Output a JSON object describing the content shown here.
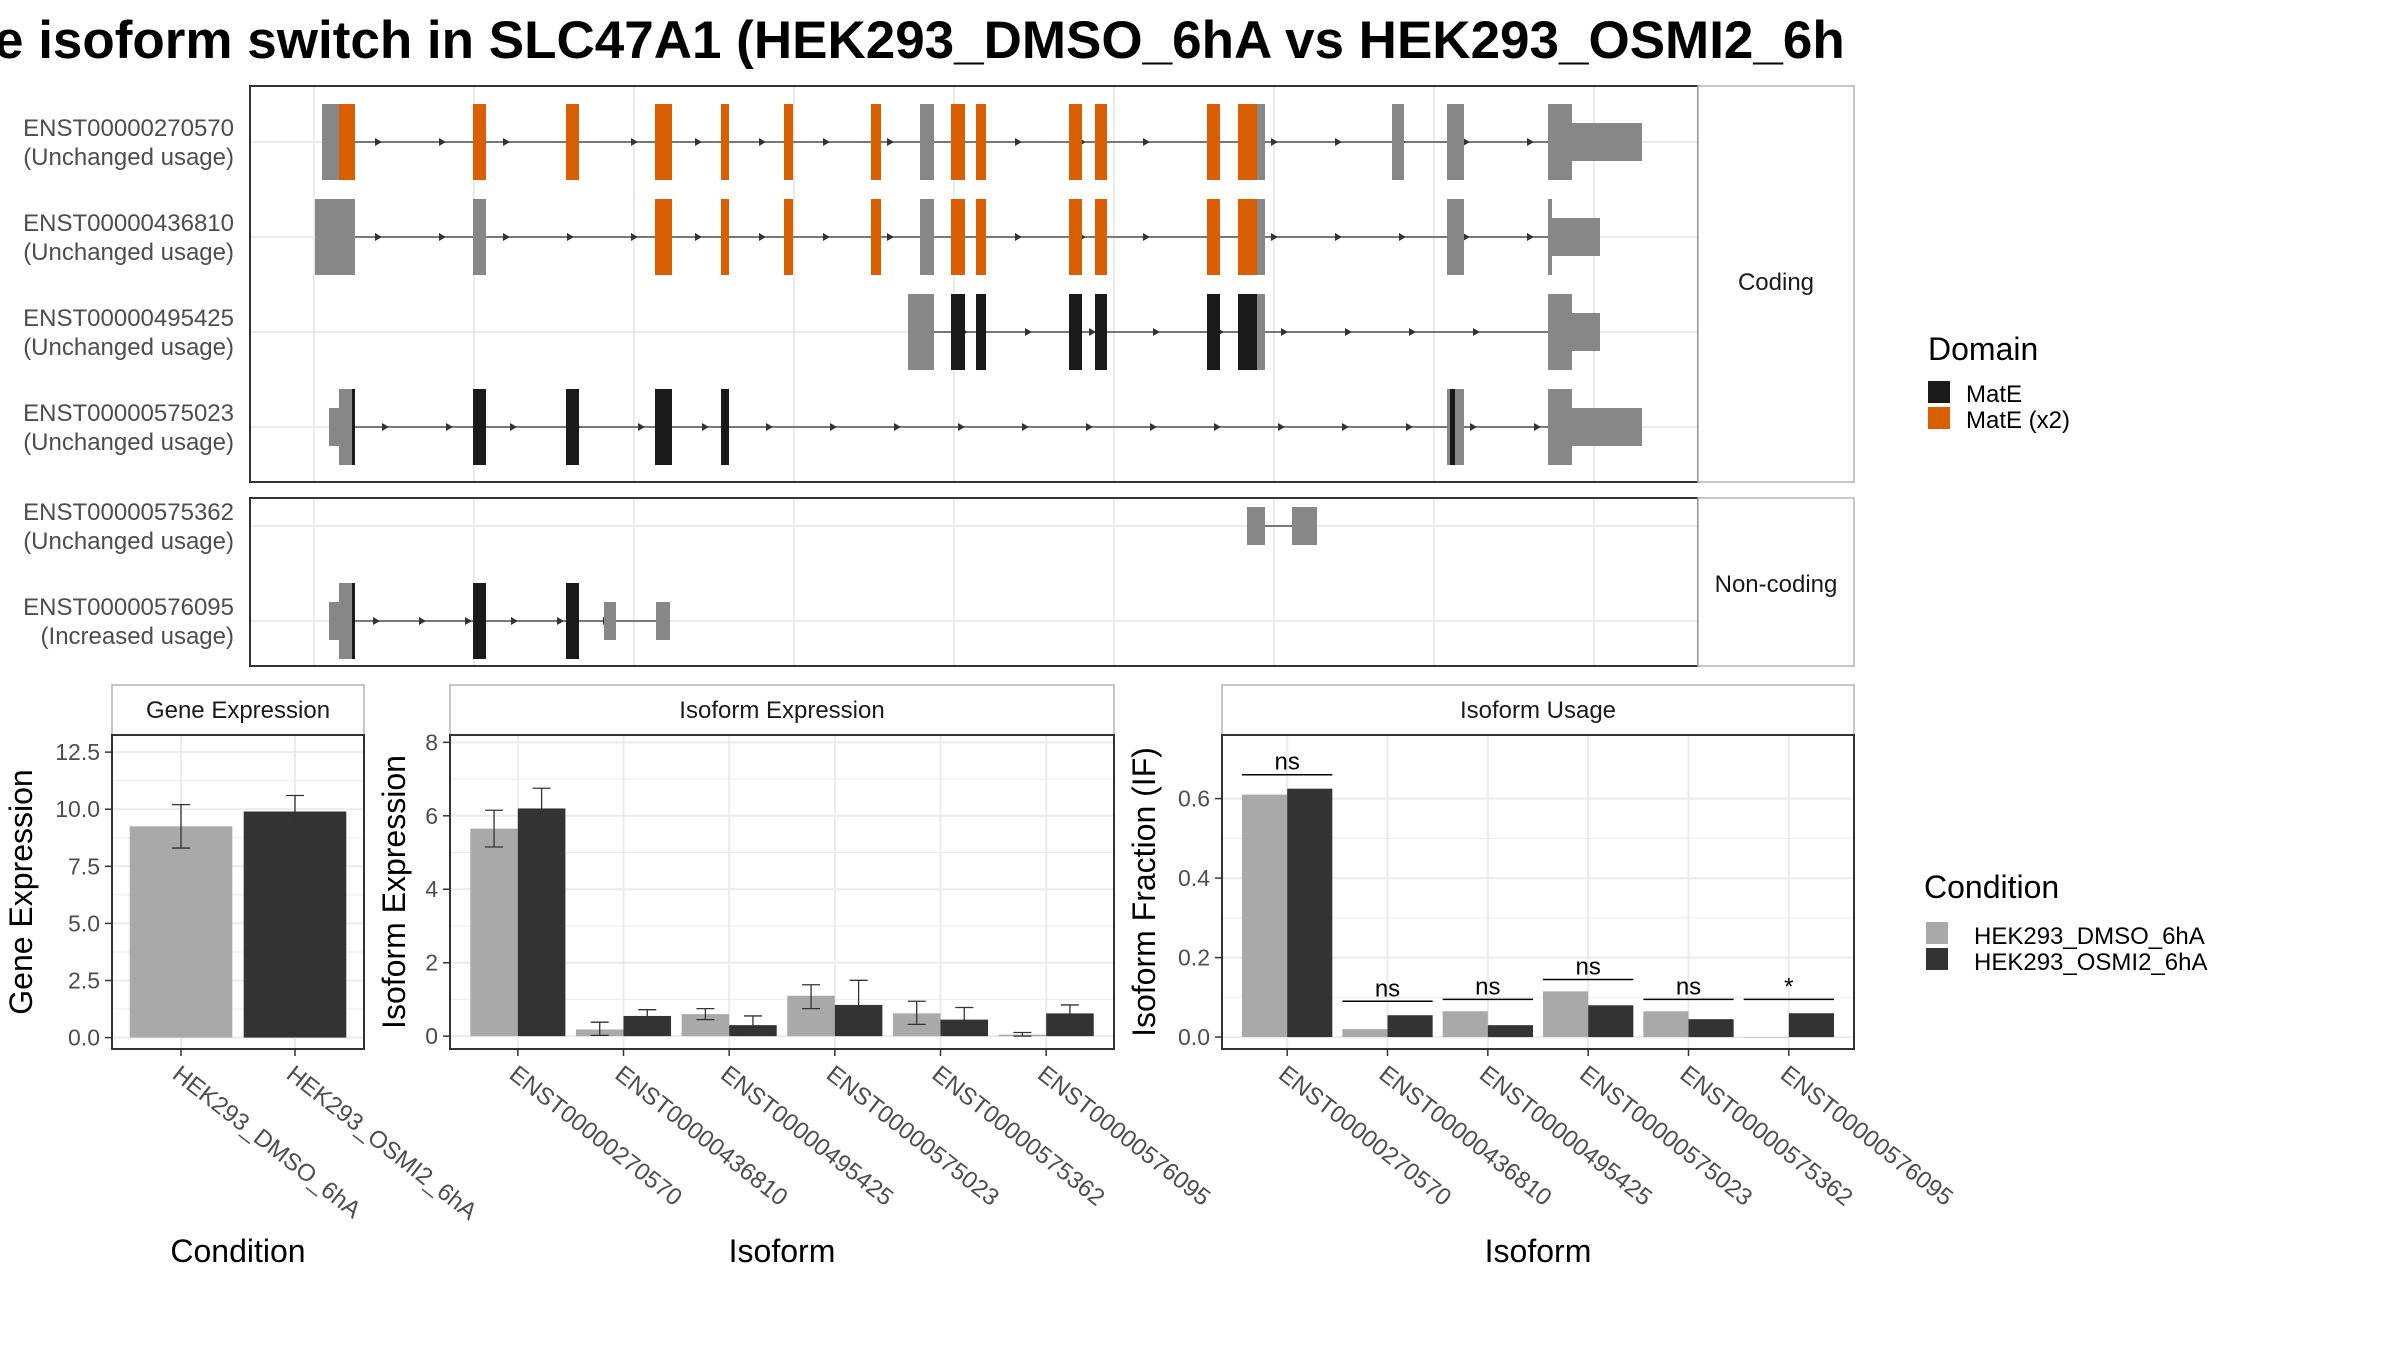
{
  "title": "e isoform switch in SLC47A1 (HEK293_DMSO_6hA vs HEK293_OSMI2_6h",
  "colors": {
    "utr": "#878787",
    "mate": "#1a1a1a",
    "mate_x2": "#d95f02",
    "noncoding_exon": "#878787",
    "dmso": "#a9a9a9",
    "osmi2": "#333333",
    "grid": "#ebebeb",
    "panel_border": "#333333",
    "strip_border": "#b3b3b3"
  },
  "facets": {
    "coding": "Coding",
    "noncoding": "Non-coding"
  },
  "domain_legend": {
    "title": "Domain",
    "items": [
      {
        "label": "MatE",
        "color_key": "mate"
      },
      {
        "label": "MatE (x2)",
        "color_key": "mate_x2"
      }
    ]
  },
  "condition_legend": {
    "title": "Condition",
    "items": [
      {
        "label": "HEK293_DMSO_6hA",
        "color_key": "dmso"
      },
      {
        "label": "HEK293_OSMI2_6hA",
        "color_key": "osmi2"
      }
    ]
  },
  "transcripts": [
    {
      "id": "ENST00000270570",
      "usage": "(Unchanged usage)",
      "group": "coding"
    },
    {
      "id": "ENST00000436810",
      "usage": "(Unchanged usage)",
      "group": "coding"
    },
    {
      "id": "ENST00000495425",
      "usage": "(Unchanged usage)",
      "group": "coding"
    },
    {
      "id": "ENST00000575023",
      "usage": "(Unchanged usage)",
      "group": "coding"
    },
    {
      "id": "ENST00000575362",
      "usage": "(Unchanged usage)",
      "group": "noncoding"
    },
    {
      "id": "ENST00000576095",
      "usage": "(Increased usage)",
      "group": "noncoding"
    }
  ],
  "chart_data": [
    {
      "type": "bar",
      "title": "Gene Expression",
      "xlabel": "Condition",
      "ylabel": "Gene Expression",
      "categories": [
        "HEK293_DMSO_6hA",
        "HEK293_OSMI2_6hA"
      ],
      "values": [
        9.25,
        9.9
      ],
      "errors": [
        [
          8.3,
          10.2
        ],
        [
          9.2,
          10.6
        ]
      ],
      "ylim": [
        -0.5,
        13.25
      ],
      "yticks": [
        0.0,
        2.5,
        5.0,
        7.5,
        10.0,
        12.5
      ],
      "ytick_labels": [
        "0.0",
        "2.5",
        "5.0",
        "7.5",
        "10.0",
        "12.5"
      ]
    },
    {
      "type": "bar",
      "title": "Isoform Expression",
      "xlabel": "Isoform",
      "ylabel": "Isoform Expression",
      "categories": [
        "ENST00000270570",
        "ENST00000436810",
        "ENST00000495425",
        "ENST00000575023",
        "ENST00000575362",
        "ENST00000576095"
      ],
      "series": [
        {
          "name": "HEK293_DMSO_6hA",
          "values": [
            5.65,
            0.18,
            0.6,
            1.1,
            0.62,
            0.04
          ],
          "errors": [
            [
              5.15,
              6.15
            ],
            [
              0.02,
              0.38
            ],
            [
              0.45,
              0.75
            ],
            [
              0.75,
              1.4
            ],
            [
              0.32,
              0.95
            ],
            [
              0.0,
              0.1
            ]
          ]
        },
        {
          "name": "HEK293_OSMI2_6hA",
          "values": [
            6.2,
            0.55,
            0.3,
            0.85,
            0.45,
            0.62
          ],
          "errors": [
            [
              5.65,
              6.75
            ],
            [
              0.4,
              0.72
            ],
            [
              0.05,
              0.55
            ],
            [
              0.15,
              1.52
            ],
            [
              0.15,
              0.78
            ],
            [
              0.42,
              0.85
            ]
          ]
        }
      ],
      "ylim": [
        -0.35,
        8.2
      ],
      "yticks": [
        0,
        2,
        4,
        6,
        8
      ],
      "ytick_labels": [
        "0",
        "2",
        "4",
        "6",
        "8"
      ]
    },
    {
      "type": "bar",
      "title": "Isoform Usage",
      "xlabel": "Isoform",
      "ylabel": "Isoform Fraction (IF)",
      "categories": [
        "ENST00000270570",
        "ENST00000436810",
        "ENST00000495425",
        "ENST00000575023",
        "ENST00000575362",
        "ENST00000576095"
      ],
      "series": [
        {
          "name": "HEK293_DMSO_6hA",
          "values": [
            0.61,
            0.02,
            0.065,
            0.115,
            0.065,
            0.0
          ]
        },
        {
          "name": "HEK293_OSMI2_6hA",
          "values": [
            0.625,
            0.055,
            0.03,
            0.08,
            0.045,
            0.06
          ]
        }
      ],
      "significance": [
        "ns",
        "ns",
        "ns",
        "ns",
        "ns",
        "*"
      ],
      "sig_y": [
        0.66,
        0.09,
        0.095,
        0.145,
        0.095,
        0.095
      ],
      "ylim": [
        -0.03,
        0.76
      ],
      "yticks": [
        0.0,
        0.2,
        0.4,
        0.6
      ],
      "ytick_labels": [
        "0.0",
        "0.2",
        "0.4",
        "0.6"
      ]
    }
  ]
}
